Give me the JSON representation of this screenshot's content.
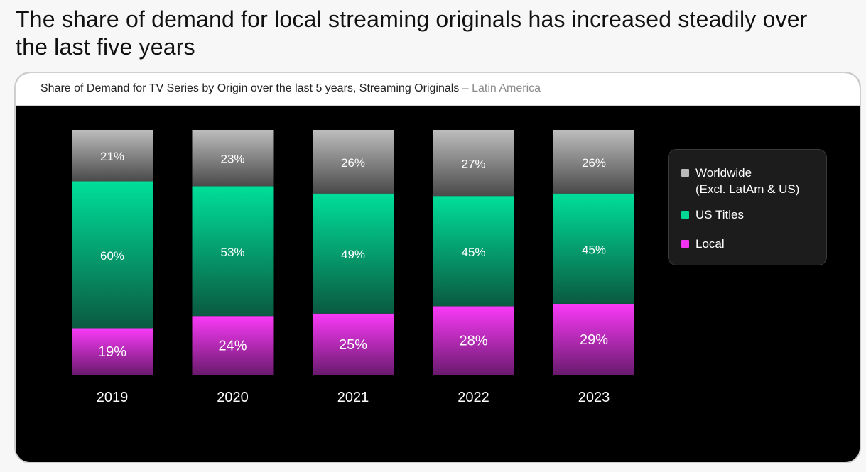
{
  "headline": "The share of demand for local streaming originals has increased steadily over the last five years",
  "subtitle": {
    "main": "Share of Demand for TV Series by Origin over the last 5 years, Streaming Originals",
    "separator": "–",
    "region": "Latin America"
  },
  "legend": {
    "items": [
      {
        "line1": "Worldwide",
        "line2": "(Excl. LatAm & US)",
        "color": "#b9b9b9"
      },
      {
        "line1": "US Titles",
        "line2": "",
        "color": "#00d795"
      },
      {
        "line1": "Local",
        "line2": "",
        "color": "#f333f3"
      }
    ]
  },
  "colors": {
    "background": "#000000",
    "worldwide_top": "#bdbdbd",
    "worldwide_bottom": "#4a4a4a",
    "us_top": "#00df9a",
    "us_bottom": "#0a5a40",
    "local_top": "#fa3af8",
    "local_bottom": "#6a1a6e",
    "label": "#ffffff",
    "axis": "#bfbfbf"
  },
  "chart_data": {
    "type": "bar",
    "stacked": true,
    "percent_stacked": true,
    "categories": [
      "2019",
      "2020",
      "2021",
      "2022",
      "2023"
    ],
    "series": [
      {
        "name": "Local",
        "values": [
          19,
          24,
          25,
          28,
          29
        ],
        "labels": [
          "19%",
          "24%",
          "25%",
          "28%",
          "29%"
        ]
      },
      {
        "name": "US Titles",
        "values": [
          60,
          53,
          49,
          45,
          45
        ],
        "labels": [
          "60%",
          "53%",
          "49%",
          "45%",
          "45%"
        ]
      },
      {
        "name": "Worldwide (Excl. LatAm & US)",
        "values": [
          21,
          23,
          26,
          27,
          26
        ],
        "labels": [
          "21%",
          "23%",
          "26%",
          "27%",
          "26%"
        ]
      }
    ],
    "ylim": [
      0,
      100
    ],
    "grid": false,
    "legend_position": "right"
  }
}
